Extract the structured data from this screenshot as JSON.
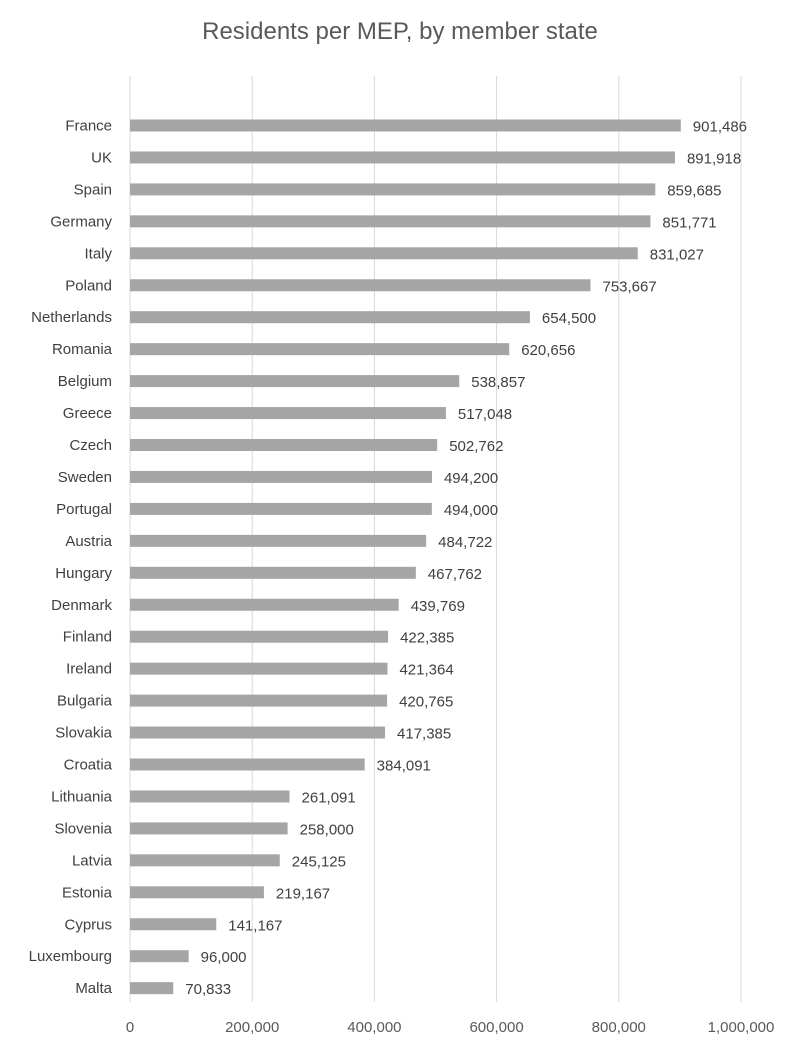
{
  "chart_data": {
    "type": "bar",
    "orientation": "horizontal",
    "title": "Residents per MEP, by member state",
    "xlabel": "",
    "ylabel": "",
    "xlim": [
      0,
      1000000
    ],
    "grid": true,
    "legend": "none",
    "bar_color": "#a5a5a5",
    "gridline_color": "#d9d9d9",
    "x_ticks": [
      "0",
      "200,000",
      "400,000",
      "600,000",
      "800,000",
      "1,000,000"
    ],
    "categories": [
      "France",
      "UK",
      "Spain",
      "Germany",
      "Italy",
      "Poland",
      "Netherlands",
      "Romania",
      "Belgium",
      "Greece",
      "Czech",
      "Sweden",
      "Portugal",
      "Austria",
      "Hungary",
      "Denmark",
      "Finland",
      "Ireland",
      "Bulgaria",
      "Slovakia",
      "Croatia",
      "Lithuania",
      "Slovenia",
      "Latvia",
      "Estonia",
      "Cyprus",
      "Luxembourg",
      "Malta"
    ],
    "values": [
      901486,
      891918,
      859685,
      851771,
      831027,
      753667,
      654500,
      620656,
      538857,
      517048,
      502762,
      494200,
      494000,
      484722,
      467762,
      439769,
      422385,
      421364,
      420765,
      417385,
      384091,
      261091,
      258000,
      245125,
      219167,
      141167,
      96000,
      70833
    ],
    "data_labels": [
      "901,486",
      "891,918",
      "859,685",
      "851,771",
      "831,027",
      "753,667",
      "654,500",
      "620,656",
      "538,857",
      "517,048",
      "502,762",
      "494,200",
      "494,000",
      "484,722",
      "467,762",
      "439,769",
      "422,385",
      "421,364",
      "420,765",
      "417,385",
      "384,091",
      "261,091",
      "258,000",
      "245,125",
      "219,167",
      "141,167",
      "96,000",
      "70,833"
    ]
  }
}
